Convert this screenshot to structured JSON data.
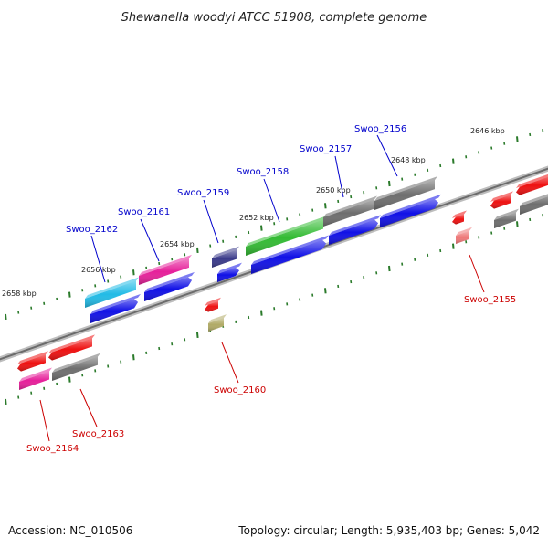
{
  "title": "Shewanella woodyi ATCC 51908, complete genome",
  "footer": {
    "accession": "Accession: NC_010506",
    "topology": "Topology: circular; Length: 5,935,403 bp; Genes: 5,042"
  },
  "scale_labels": [
    "2646 kbp",
    "2648 kbp",
    "2650 kbp",
    "2652 kbp",
    "2654 kbp",
    "2656 kbp",
    "2658 kbp"
  ],
  "gene_labels": {
    "top": [
      "Swoo_2156",
      "Swoo_2157",
      "Swoo_2158",
      "Swoo_2159",
      "Swoo_2161",
      "Swoo_2162"
    ],
    "bottom": [
      "Swoo_2155",
      "Swoo_2160",
      "Swoo_2163",
      "Swoo_2164"
    ]
  },
  "colors": {
    "top_label": "#0000cc",
    "bottom_label": "#cc0000",
    "tick": "#2a7a2a",
    "backbone": "#8a8a8a",
    "gray": "#6e6e6e",
    "blue": "#1010e6",
    "green": "#33bb33",
    "magenta": "#e6209a",
    "cyan": "#22bbe6",
    "navy": "#3a3a8a",
    "red": "#ee1111",
    "salmon": "#ee7777",
    "olive": "#b0aa66"
  }
}
